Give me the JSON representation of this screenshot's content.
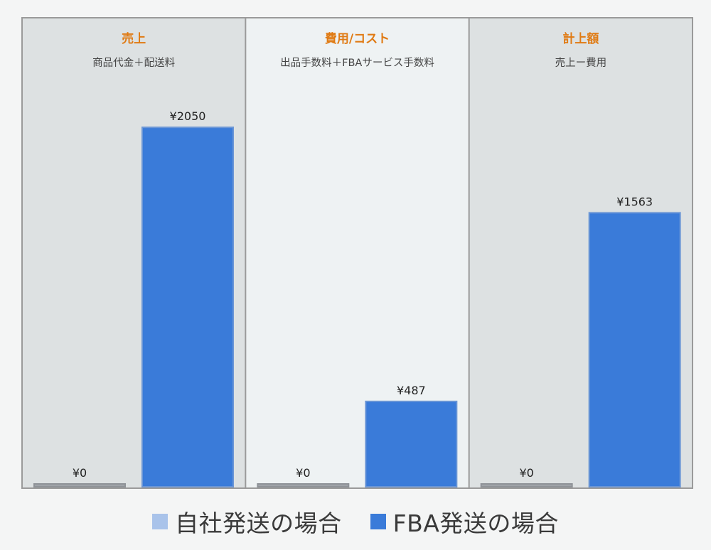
{
  "colors": {
    "accent_title": "#e07b14",
    "series_self": "#9fa3a8",
    "series_fba": "#3a7bd9",
    "legend_self_swatch": "#a9c3ea",
    "legend_fba_swatch": "#3a7bd9",
    "panel_bg_outer": "#dde1e2",
    "panel_bg_middle": "#eef2f3",
    "frame": "#9a9a9a"
  },
  "chart_data": {
    "type": "bar",
    "categories": [
      "売上",
      "費用/コスト",
      "計上額"
    ],
    "subtitles": [
      "商品代金＋配送料",
      "出品手数料＋FBAサービス手数料",
      "売上ー費用"
    ],
    "series": [
      {
        "name": "自社発送の場合",
        "values": [
          0,
          0,
          0
        ],
        "labels": [
          "¥0",
          "¥0",
          "¥0"
        ]
      },
      {
        "name": "FBA発送の場合",
        "values": [
          2050,
          487,
          1563
        ],
        "labels": [
          "¥2050",
          "¥487",
          "¥1563"
        ]
      }
    ],
    "ylim": [
      0,
      2140
    ],
    "grid": false,
    "legend_position": "bottom"
  },
  "legend": [
    {
      "label": "自社発送の場合",
      "color": "#a9c3ea"
    },
    {
      "label": "FBA発送の場合",
      "color": "#3a7bd9"
    }
  ]
}
